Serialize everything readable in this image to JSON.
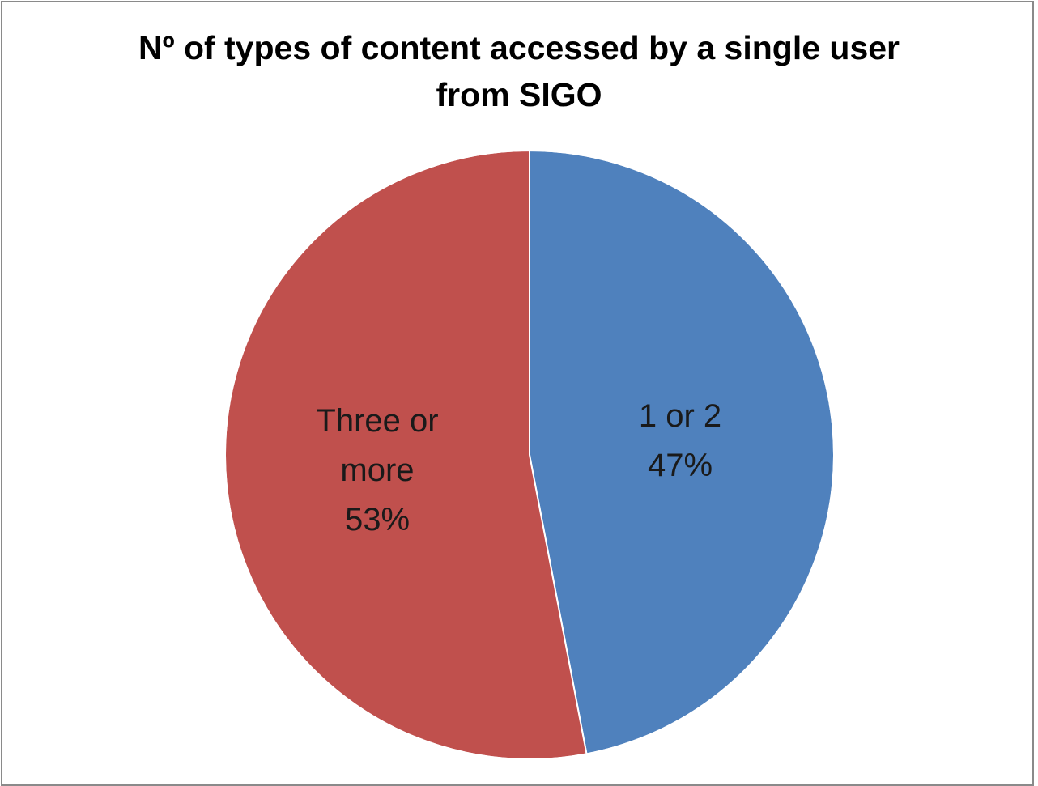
{
  "chart_data": {
    "type": "pie",
    "title_lines": [
      "Nº of types of content accessed by a single user",
      "from SIGO"
    ],
    "slices": [
      {
        "label": "1 or 2",
        "value": 47,
        "value_text": "47%",
        "color": "#4F81BD"
      },
      {
        "label_lines": [
          "Three or",
          "more"
        ],
        "value": 53,
        "value_text": "53%",
        "color": "#C0504D"
      }
    ]
  }
}
